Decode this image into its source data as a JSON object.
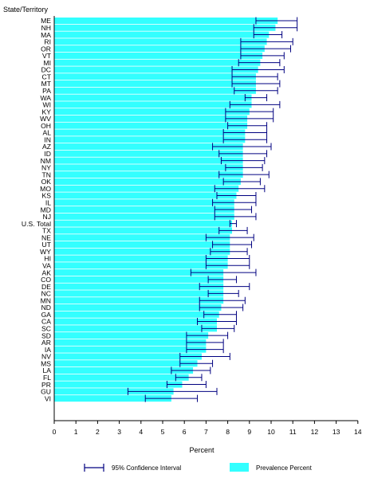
{
  "chart_data": {
    "type": "bar",
    "orientation": "horizontal",
    "y_axis_title": "State/Territory",
    "xlabel": "Percent",
    "xlim": [
      0,
      14
    ],
    "x_ticks": [
      "0",
      "1",
      "2",
      "3",
      "4",
      "5",
      "6",
      "7",
      "8",
      "9",
      "10",
      "11",
      "12",
      "13",
      "14"
    ],
    "grid": false,
    "legend_position": "bottom",
    "colors": {
      "bar": "#33FFFF",
      "error": "#000080",
      "axis": "#000000"
    },
    "series": [
      {
        "name": "Prevalence Percent",
        "kind": "bar"
      },
      {
        "name": "95% Confidence Interval",
        "kind": "errorbar"
      }
    ],
    "categories": [
      "ME",
      "NH",
      "MA",
      "RI",
      "OR",
      "VT",
      "MI",
      "DC",
      "CT",
      "MT",
      "PA",
      "WA",
      "WI",
      "KY",
      "WV",
      "OH",
      "AL",
      "IN",
      "AZ",
      "ID",
      "NM",
      "NY",
      "TN",
      "OK",
      "MO",
      "KS",
      "IL",
      "MD",
      "NJ",
      "U.S. Total",
      "TX",
      "NE",
      "UT",
      "WY",
      "HI",
      "VA",
      "AK",
      "CO",
      "DE",
      "NC",
      "MN",
      "ND",
      "GA",
      "CA",
      "SC",
      "SD",
      "AR",
      "IA",
      "NV",
      "MS",
      "LA",
      "FL",
      "PR",
      "GU",
      "VI"
    ],
    "values": [
      10.3,
      10.2,
      9.9,
      9.8,
      9.7,
      9.6,
      9.5,
      9.4,
      9.3,
      9.3,
      9.3,
      9.1,
      9.1,
      9.0,
      8.9,
      8.9,
      8.8,
      8.8,
      8.7,
      8.7,
      8.7,
      8.7,
      8.7,
      8.6,
      8.5,
      8.4,
      8.3,
      8.3,
      8.3,
      8.2,
      8.2,
      8.1,
      8.1,
      8.1,
      8.0,
      8.0,
      7.8,
      7.8,
      7.8,
      7.8,
      7.8,
      7.7,
      7.6,
      7.5,
      7.5,
      7.1,
      7.0,
      7.0,
      6.8,
      6.6,
      6.4,
      6.2,
      5.9,
      5.5,
      5.4
    ],
    "ci_low": [
      9.3,
      9.2,
      9.2,
      8.6,
      8.6,
      8.6,
      8.5,
      8.2,
      8.2,
      8.2,
      8.3,
      8.8,
      8.1,
      7.9,
      7.9,
      8.0,
      7.8,
      7.8,
      7.3,
      7.6,
      7.7,
      7.9,
      7.6,
      7.8,
      7.4,
      7.5,
      7.3,
      7.4,
      7.4,
      8.1,
      7.6,
      7.0,
      7.3,
      7.2,
      7.0,
      7.0,
      6.3,
      7.1,
      6.7,
      7.1,
      6.7,
      6.7,
      6.9,
      6.6,
      6.8,
      6.1,
      6.1,
      6.1,
      5.8,
      5.8,
      5.4,
      5.6,
      5.2,
      3.4,
      4.2
    ],
    "ci_high": [
      11.2,
      11.2,
      10.5,
      11.0,
      10.9,
      10.6,
      10.4,
      10.6,
      10.3,
      10.4,
      10.3,
      9.8,
      10.4,
      10.1,
      10.1,
      9.8,
      9.8,
      9.8,
      10.0,
      9.8,
      9.7,
      9.6,
      9.9,
      9.5,
      9.7,
      9.3,
      9.3,
      9.1,
      9.3,
      8.4,
      8.9,
      9.2,
      9.1,
      8.9,
      9.0,
      9.0,
      9.3,
      8.4,
      9.0,
      8.5,
      8.8,
      8.7,
      8.4,
      8.4,
      8.3,
      8.0,
      7.8,
      7.8,
      8.1,
      7.3,
      7.2,
      6.8,
      7.0,
      7.5,
      6.6
    ]
  }
}
